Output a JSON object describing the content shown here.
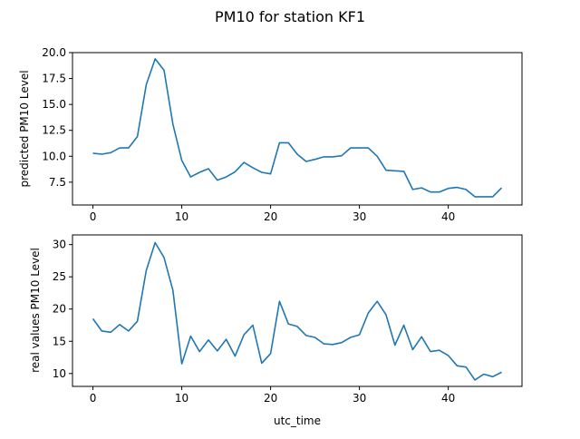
{
  "figure": {
    "suptitle": "PM10 for station KF1"
  },
  "chart_data": [
    {
      "type": "line",
      "title": "",
      "xlabel": "",
      "ylabel": "predicted PM10 Level",
      "xlim": [
        -2.3,
        48.3
      ],
      "ylim": [
        5.3,
        20.0
      ],
      "xticks": [
        0,
        10,
        20,
        30,
        40
      ],
      "yticks": [
        7.5,
        10.0,
        12.5,
        15.0,
        17.5,
        20.0
      ],
      "ytick_labels": [
        "7.5",
        "10.0",
        "12.5",
        "15.0",
        "17.5",
        "20.0"
      ],
      "line_color": "#1f77b4",
      "grid": false,
      "series": [
        {
          "x": [
            0,
            1,
            2,
            3,
            4,
            5,
            6,
            7,
            8,
            9,
            10,
            11,
            12,
            13,
            14,
            15,
            16,
            17,
            18,
            19,
            20,
            21,
            22,
            23,
            24,
            25,
            26,
            27,
            28,
            29,
            30,
            31,
            32,
            33,
            34,
            35,
            36,
            37,
            38,
            39,
            40,
            41,
            42,
            43,
            44,
            45,
            46
          ],
          "values": [
            10.3,
            10.2,
            10.35,
            10.8,
            10.8,
            11.9,
            16.9,
            19.4,
            18.3,
            13.1,
            9.6,
            8.0,
            8.45,
            8.8,
            7.7,
            8.0,
            8.5,
            9.4,
            8.9,
            8.45,
            8.3,
            11.3,
            11.3,
            10.2,
            9.5,
            9.7,
            9.95,
            9.95,
            10.05,
            10.8,
            10.8,
            10.8,
            10.0,
            8.65,
            8.6,
            8.55,
            6.8,
            6.95,
            6.55,
            6.55,
            6.9,
            7.0,
            6.8,
            6.1,
            6.1,
            6.1,
            6.95
          ]
        }
      ]
    },
    {
      "type": "line",
      "title": "",
      "xlabel": "utc_time",
      "ylabel": "real values PM10 Level",
      "xlim": [
        -2.3,
        48.3
      ],
      "ylim": [
        8.0,
        31.5
      ],
      "xticks": [
        0,
        10,
        20,
        30,
        40
      ],
      "yticks": [
        10,
        15,
        20,
        25,
        30
      ],
      "ytick_labels": [
        "10",
        "15",
        "20",
        "25",
        "30"
      ],
      "line_color": "#1f77b4",
      "grid": false,
      "series": [
        {
          "x": [
            0,
            1,
            2,
            3,
            4,
            5,
            6,
            7,
            8,
            9,
            10,
            11,
            12,
            13,
            14,
            15,
            16,
            17,
            18,
            19,
            20,
            21,
            22,
            23,
            24,
            25,
            26,
            27,
            28,
            29,
            30,
            31,
            32,
            33,
            34,
            35,
            36,
            37,
            38,
            39,
            40,
            41,
            42,
            43,
            44,
            45,
            46
          ],
          "values": [
            18.5,
            16.6,
            16.4,
            17.6,
            16.6,
            18.1,
            26.0,
            30.3,
            28.0,
            22.9,
            11.5,
            15.8,
            13.4,
            15.2,
            13.5,
            15.3,
            12.7,
            16.0,
            17.5,
            11.6,
            13.1,
            21.2,
            17.7,
            17.3,
            15.9,
            15.6,
            14.6,
            14.5,
            14.8,
            15.6,
            16.0,
            19.4,
            21.2,
            19.1,
            14.4,
            17.5,
            13.7,
            15.7,
            13.4,
            13.6,
            12.8,
            11.2,
            11.0,
            9.0,
            9.9,
            9.5,
            10.2
          ]
        }
      ]
    }
  ]
}
